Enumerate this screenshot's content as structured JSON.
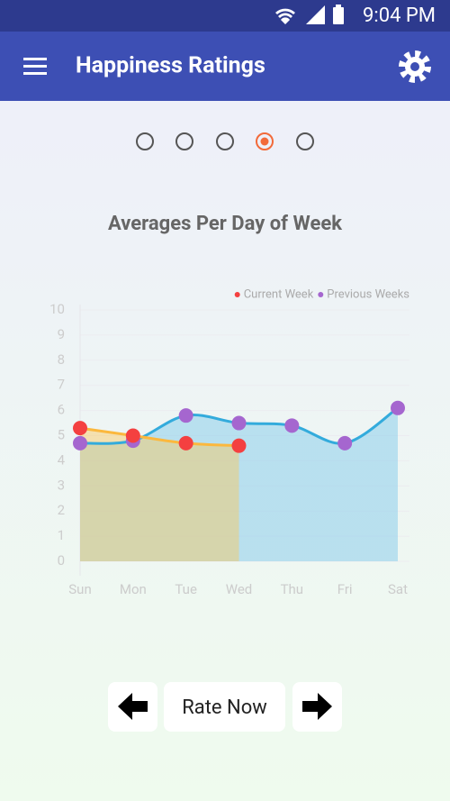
{
  "status_bar": {
    "time": "9:04 PM"
  },
  "app_bar": {
    "title": "Happiness Ratings"
  },
  "chart_data": {
    "type": "line",
    "title": "Averages Per Day of Week",
    "categories": [
      "Sun",
      "Mon",
      "Tue",
      "Wed",
      "Thu",
      "Fri",
      "Sat"
    ],
    "series": [
      {
        "name": "Current Week",
        "color": "#f44040",
        "line_color": "#fbb83e",
        "fill": "rgba(250,200,90,0.45)",
        "values": [
          5.3,
          5.0,
          4.7,
          4.6,
          null,
          null,
          null
        ]
      },
      {
        "name": "Previous Weeks",
        "color": "#a566cf",
        "line_color": "#33abdc",
        "fill": "rgba(140,205,235,0.55)",
        "values": [
          4.7,
          4.8,
          5.8,
          5.5,
          5.4,
          4.7,
          6.1
        ]
      }
    ],
    "ylim": [
      0,
      10
    ],
    "yticks": [
      0,
      1,
      2,
      3,
      4,
      5,
      6,
      7,
      8,
      9,
      10
    ],
    "grid": true,
    "legend": "top-right"
  },
  "buttons": {
    "rate": "Rate Now"
  }
}
